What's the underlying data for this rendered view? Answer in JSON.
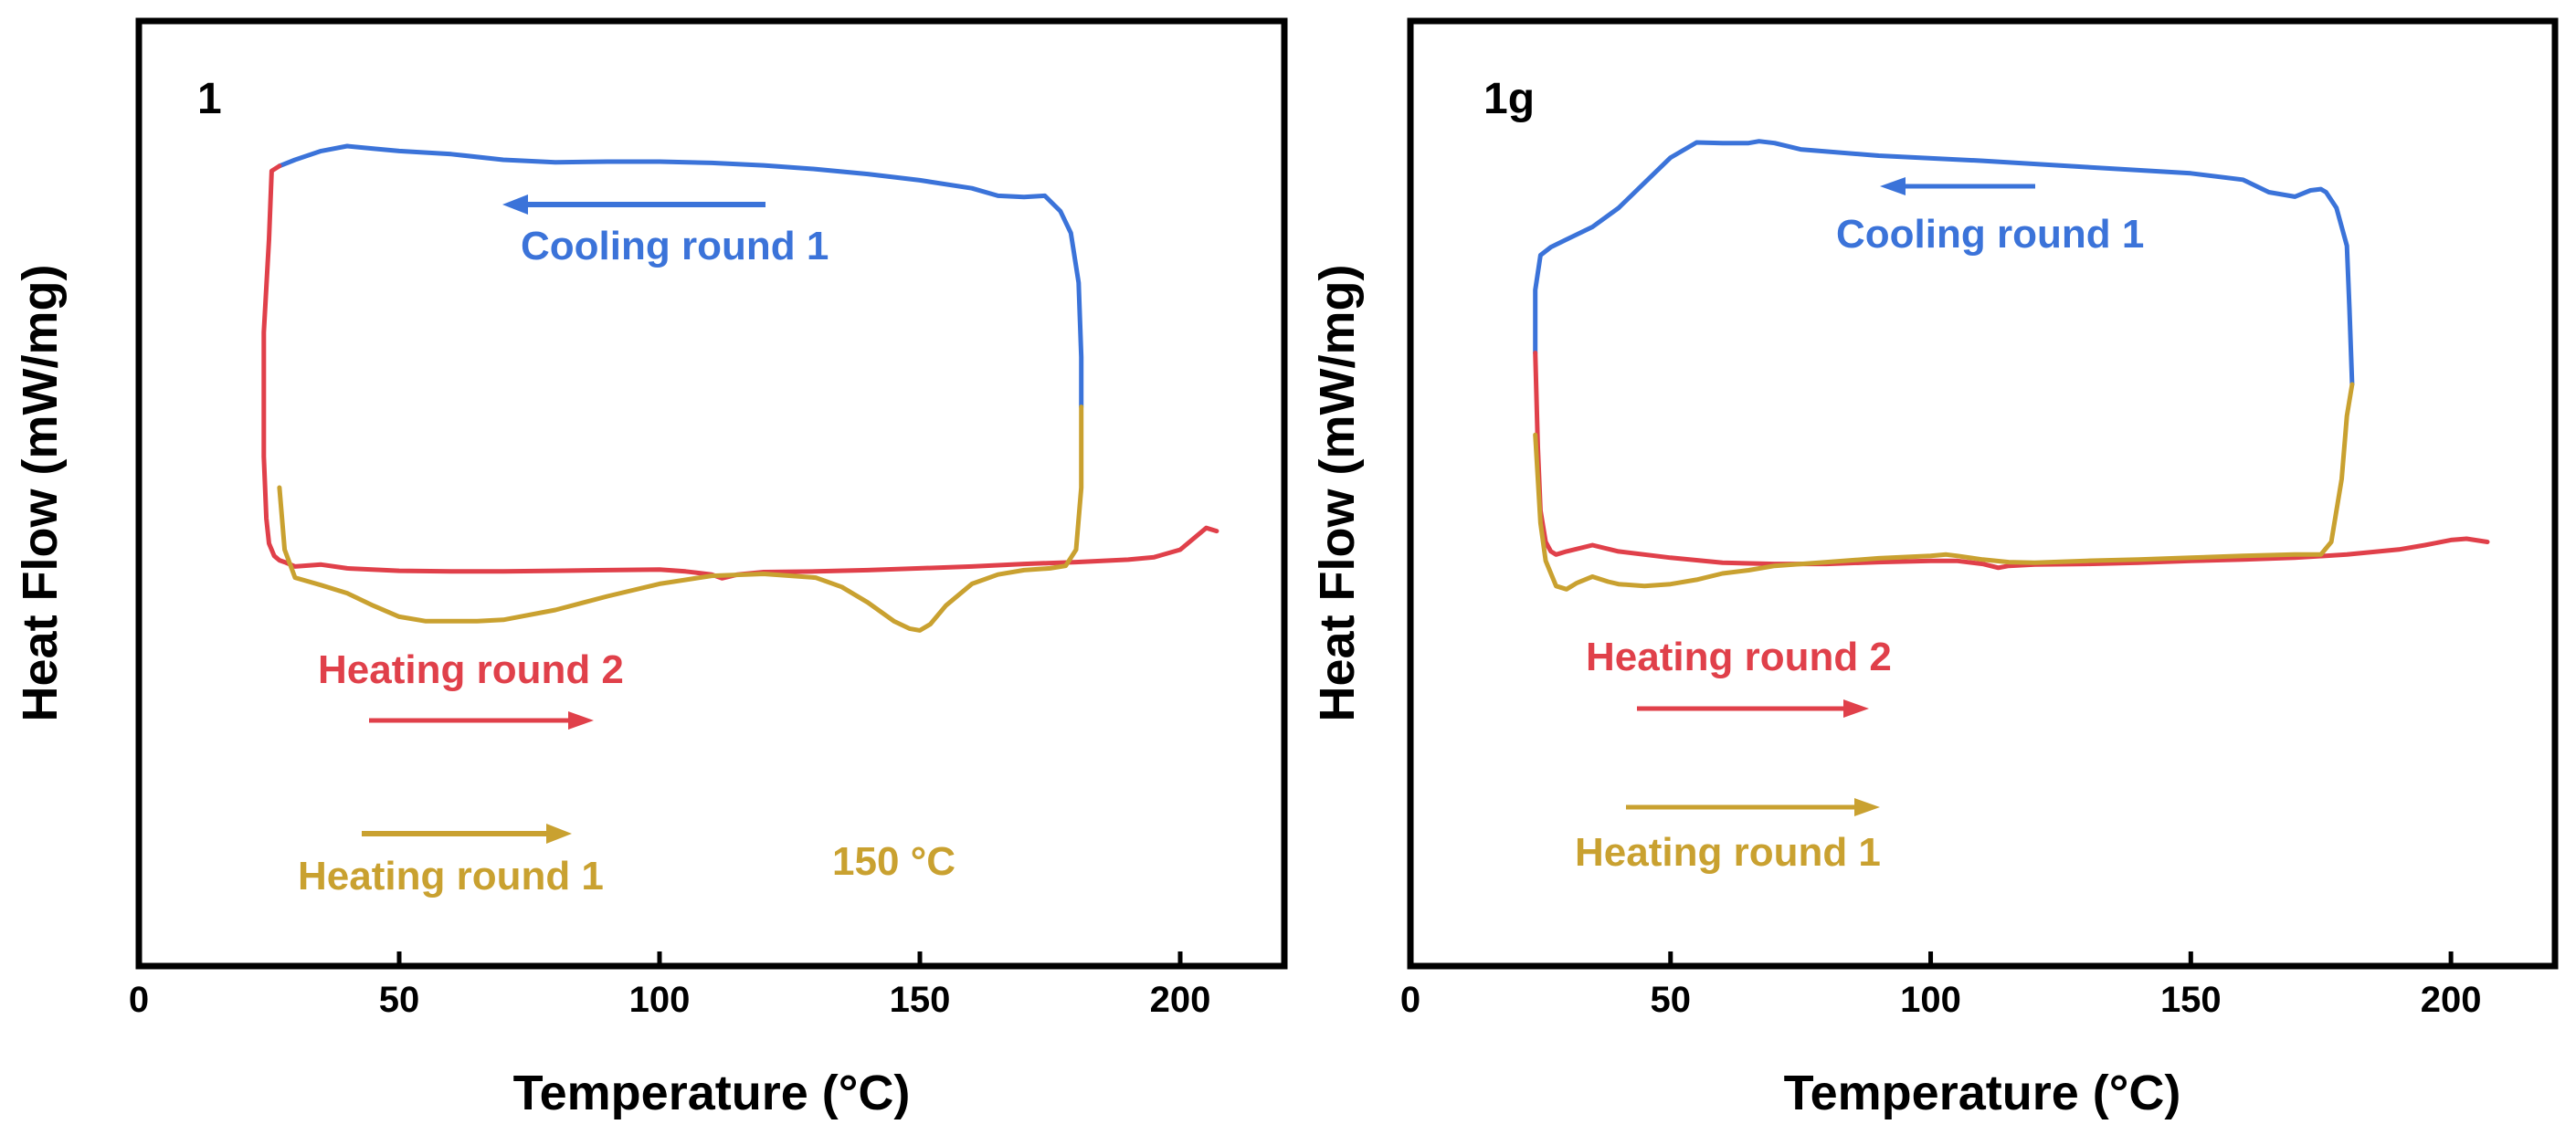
{
  "colors": {
    "cooling": "#3b73d9",
    "heating_round_2": "#e0404a",
    "heating_round_1": "#c9a130",
    "axis": "#000000"
  },
  "chart_data": [
    {
      "type": "line",
      "panel_label": "1",
      "xlabel": "Temperature (°C)",
      "ylabel": "Heat Flow (mW/mg)",
      "xlim": [
        0,
        220
      ],
      "ylim": [
        0,
        100
      ],
      "xticks": [
        "0",
        "50",
        "100",
        "150",
        "200"
      ],
      "xtick_values": [
        0,
        50,
        100,
        150,
        200
      ],
      "yticks_shown": false,
      "annotations": [
        "Cooling round 1",
        "Heating round 2",
        "Heating round 1",
        "150 °C"
      ],
      "series": [
        {
          "name": "Cooling round 1",
          "color_key": "cooling",
          "x": [
            181,
            181,
            180.5,
            179,
            177,
            174,
            170,
            165,
            160,
            150,
            140,
            130,
            120,
            110,
            100,
            90,
            80,
            70,
            60,
            50,
            45,
            40,
            35,
            30,
            27
          ],
          "y": [
            58,
            66,
            78,
            86,
            89.5,
            92,
            91.8,
            92,
            93.2,
            94.5,
            95.5,
            96.3,
            96.9,
            97.3,
            97.5,
            97.5,
            97.4,
            97.8,
            98.7,
            99.2,
            99.6,
            100,
            99.2,
            97.8,
            96.8
          ]
        },
        {
          "name": "Heating round 2",
          "color_key": "heating_round_2",
          "x": [
            27,
            25.5,
            25,
            24,
            24,
            24.5,
            25,
            26,
            27,
            28,
            30,
            35,
            40,
            50,
            60,
            70,
            80,
            90,
            100,
            105,
            110,
            112,
            115,
            120,
            130,
            140,
            150,
            160,
            170,
            180,
            190,
            195,
            200,
            205,
            207
          ],
          "y": [
            96.8,
            96,
            85,
            70,
            50,
            40,
            36,
            34,
            33.3,
            33,
            32.3,
            32.6,
            32,
            31.6,
            31.5,
            31.5,
            31.6,
            31.7,
            31.8,
            31.5,
            31,
            30.4,
            31,
            31.4,
            31.5,
            31.7,
            32,
            32.3,
            32.7,
            33,
            33.4,
            33.8,
            35,
            38.5,
            38
          ]
        },
        {
          "name": "Heating round 1",
          "color_key": "heating_round_1",
          "x": [
            27,
            28,
            30,
            35,
            40,
            45,
            50,
            55,
            60,
            65,
            70,
            80,
            90,
            100,
            110,
            120,
            130,
            135,
            140,
            145,
            148,
            150,
            152,
            155,
            160,
            165,
            170,
            175,
            178,
            180,
            181,
            181
          ],
          "y": [
            45,
            35,
            30.5,
            29.3,
            28,
            26,
            24.2,
            23.5,
            23.5,
            23.5,
            23.7,
            25.3,
            27.5,
            29.5,
            30.8,
            31.1,
            30.5,
            29,
            26.5,
            23.5,
            22.3,
            22,
            23,
            26,
            29.5,
            31,
            31.7,
            32,
            32.4,
            35,
            45,
            58
          ]
        }
      ]
    },
    {
      "type": "line",
      "panel_label": "1g",
      "xlabel": "Temperature (°C)",
      "ylabel": "Heat Flow (mW/mg)",
      "xlim": [
        0,
        220
      ],
      "ylim": [
        0,
        100
      ],
      "xticks": [
        "0",
        "50",
        "100",
        "150",
        "200"
      ],
      "xtick_values": [
        0,
        50,
        100,
        150,
        200
      ],
      "yticks_shown": false,
      "annotations": [
        "Cooling round 1",
        "Heating round 2",
        "Heating round 1"
      ],
      "series": [
        {
          "name": "Cooling round 1",
          "color_key": "cooling",
          "x": [
            181,
            180.5,
            180,
            178,
            176,
            175,
            173,
            170,
            165,
            160,
            150,
            130,
            110,
            90,
            75,
            70,
            67,
            65,
            60,
            55,
            50,
            45,
            40,
            35,
            30,
            27,
            25,
            24,
            24
          ],
          "y": [
            60,
            72,
            82,
            88,
            90.5,
            91,
            90.8,
            89.8,
            90.5,
            92.5,
            93.5,
            94.5,
            95.5,
            96.3,
            97.3,
            98.3,
            98.6,
            98.3,
            98.3,
            98.4,
            96,
            92,
            88,
            85,
            83,
            81.8,
            80.5,
            75,
            65
          ]
        },
        {
          "name": "Heating round 2",
          "color_key": "heating_round_2",
          "x": [
            24,
            24.5,
            25,
            26,
            27,
            28,
            30,
            35,
            40,
            50,
            60,
            70,
            80,
            90,
            100,
            105,
            110,
            113,
            115,
            120,
            130,
            140,
            150,
            160,
            170,
            180,
            190,
            195,
            200,
            203,
            207
          ],
          "y": [
            65,
            50,
            40,
            35,
            33.5,
            33,
            33.5,
            34.5,
            33.5,
            32.5,
            31.7,
            31.5,
            31.5,
            31.8,
            32,
            32,
            31.5,
            30.9,
            31.2,
            31.4,
            31.5,
            31.7,
            32,
            32.2,
            32.5,
            33,
            33.8,
            34.5,
            35.3,
            35.5,
            35
          ]
        },
        {
          "name": "Heating round 1",
          "color_key": "heating_round_1",
          "x": [
            24,
            25,
            26,
            28,
            30,
            32,
            35,
            38,
            40,
            45,
            50,
            55,
            60,
            65,
            70,
            80,
            90,
            100,
            103,
            105,
            110,
            115,
            120,
            130,
            140,
            150,
            160,
            170,
            175,
            177,
            179,
            180,
            181
          ],
          "y": [
            52,
            38,
            32,
            28,
            27.5,
            28.5,
            29.5,
            28.7,
            28.3,
            28,
            28.3,
            29,
            30,
            30.5,
            31.2,
            31.8,
            32.4,
            32.8,
            33,
            32.8,
            32.2,
            31.8,
            31.7,
            32,
            32.2,
            32.5,
            32.8,
            33,
            33,
            35,
            45,
            55,
            60
          ]
        }
      ]
    }
  ]
}
